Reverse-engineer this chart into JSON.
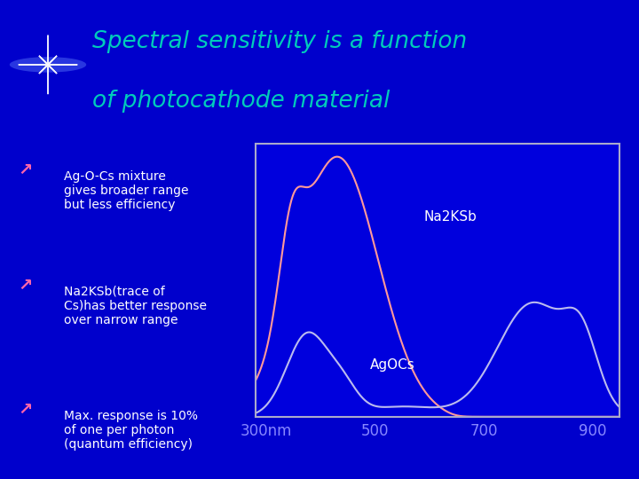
{
  "bg_color": "#0000CC",
  "header_bg": "#00008B",
  "title_line1": "Spectral sensitivity is a function",
  "title_line2": "of photocathode material",
  "title_color": "#00CCBB",
  "bullet_arrow_color": "#FF66AA",
  "text_color": "#FFFFFF",
  "bullet_points": [
    "Ag-O-Cs mixture\ngives broader range\nbut less efficiency",
    "Na2KSb(trace of\nCs)has better response\nover narrow range",
    "Max. response is 10%\nof one per photon\n(quantum efficiency)"
  ],
  "plot_bg": "#0000DD",
  "plot_border_color": "#AAAACC",
  "na2ksb_color": "#FF9999",
  "agocs_color": "#BBBBEE",
  "x_ticks": [
    300,
    500,
    700,
    900
  ],
  "x_tick_labels": [
    "300nm",
    "500",
    "700",
    "900"
  ],
  "xlim": [
    280,
    950
  ],
  "ylim": [
    0,
    1.05
  ],
  "na2ksb_label": "Na2KSb",
  "agocs_label": "AgOCs",
  "separator_color": "#008866",
  "tick_label_color": "#8888FF",
  "tick_fontsize": 12
}
